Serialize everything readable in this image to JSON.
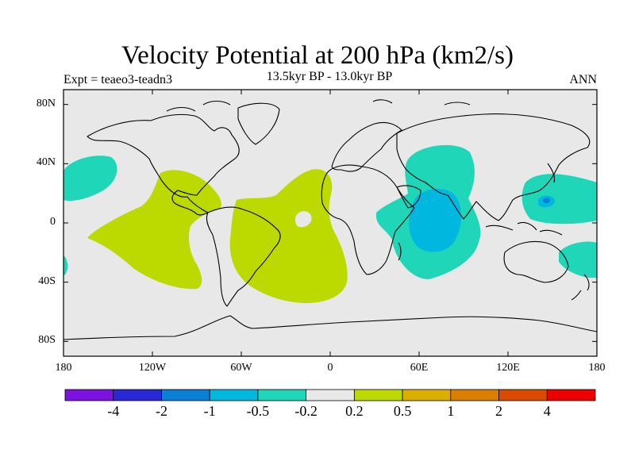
{
  "title": "Velocity Potential at 200 hPa (km2/s)",
  "subtitle": "13.5kyr BP - 13.0kyr BP",
  "experiment": "Expt = teaeo3-teadn3",
  "season": "ANN",
  "map": {
    "projection": "cylindrical-equidistant",
    "lon_range": [
      -180,
      180
    ],
    "lat_range": [
      -90,
      90
    ],
    "background_color": "#e8e8e8",
    "lat_ticks": [
      {
        "value": 80,
        "label": "80N"
      },
      {
        "value": 40,
        "label": "40N"
      },
      {
        "value": 0,
        "label": "0"
      },
      {
        "value": -40,
        "label": "40S"
      },
      {
        "value": -80,
        "label": "80S"
      }
    ],
    "lon_ticks": [
      {
        "value": -180,
        "label": "180"
      },
      {
        "value": -120,
        "label": "120W"
      },
      {
        "value": -60,
        "label": "60W"
      },
      {
        "value": 0,
        "label": "0"
      },
      {
        "value": 60,
        "label": "60E"
      },
      {
        "value": 120,
        "label": "120E"
      },
      {
        "value": 180,
        "label": "180"
      }
    ]
  },
  "colorbar": {
    "colors": [
      "#7d12e0",
      "#2828d8",
      "#0a7fd6",
      "#00b8df",
      "#1fd6b9",
      "#e8e8e8",
      "#bcd900",
      "#dcae00",
      "#dc7f00",
      "#dc4a00",
      "#ec0000"
    ],
    "labels": [
      "-4",
      "-2",
      "-1",
      "-0.5",
      "-0.2",
      "0.2",
      "0.5",
      "1",
      "2",
      "4"
    ]
  }
}
